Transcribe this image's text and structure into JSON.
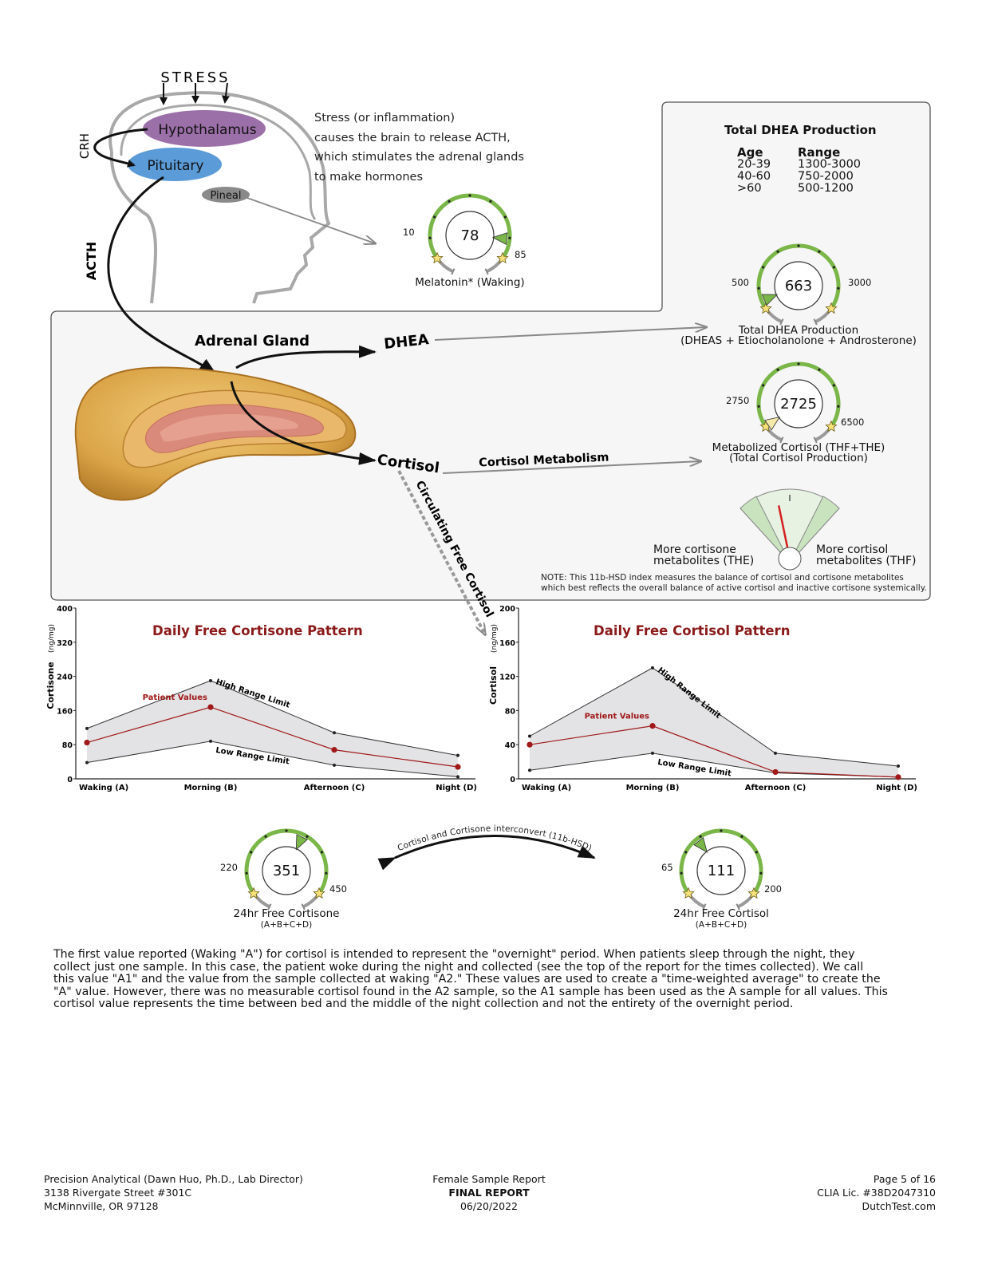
{
  "diagram": {
    "stress_label": "STRESS",
    "hypothalamus_label": "Hypothalamus",
    "pituitary_label": "Pituitary",
    "pineal_label": "Pineal",
    "crh_label": "CRH",
    "acth_label": "ACTH",
    "adrenal_label": "Adrenal Gland",
    "dhea_label": "DHEA",
    "cortisol_label": "Cortisol",
    "cortisol_metabolism_label": "Cortisol Metabolism",
    "circulating_label": "Circulating Free Cortisol",
    "interconvert_label": "Cortisol and Cortisone interconvert (11b-HSD)",
    "stress_description": [
      "Stress (or inflammation)",
      "causes the brain to release ACTH,",
      "which stimulates the adrenal glands",
      "to make hormones"
    ]
  },
  "dhea_table": {
    "title": "Total DHEA Production",
    "age_header": "Age",
    "range_header": "Range",
    "ages": [
      "20-39",
      "40-60",
      ">60"
    ],
    "ranges": [
      "1300-3000",
      "750-2000",
      "500-1200"
    ]
  },
  "gauges": {
    "melatonin": {
      "value": "78",
      "low": "10",
      "high": "85",
      "label": "Melatonin* (Waking)",
      "fraction": 0.88
    },
    "dhea": {
      "value": "663",
      "low": "500",
      "high": "3000",
      "label": "Total DHEA Production",
      "sublabel": "(DHEAS + Etiocholanolone + Androsterone)",
      "fraction": 0.05
    },
    "metab_cortisol": {
      "value": "2725",
      "low": "2750",
      "high": "6500",
      "label": "Metabolized Cortisol (THF+THE)",
      "sublabel": "(Total Cortisol Production)",
      "fraction": 0.0
    },
    "cortisone24": {
      "value": "351",
      "low": "220",
      "high": "450",
      "label": "24hr Free Cortisone",
      "sublabel": "(A+B+C+D)",
      "fraction": 0.6
    },
    "cortisol24": {
      "value": "111",
      "low": "65",
      "high": "200",
      "label": "24hr Free Cortisol",
      "sublabel": "(A+B+C+D)",
      "fraction": 0.35
    }
  },
  "hsd_index": {
    "left_label_1": "More cortisone",
    "left_label_2": "metabolites (THE)",
    "right_label_1": "More cortisol",
    "right_label_2": "metabolites (THF)",
    "needle_fraction": 0.36,
    "note_1": "NOTE: This 11b-HSD index measures the balance of cortisol and cortisone metabolites",
    "note_2": "which best reflects the overall balance of active cortisol and inactive cortisone systemically."
  },
  "chart_data": [
    {
      "type": "line",
      "title": "Daily Free Cortisone Pattern",
      "ylabel": "Cortisone",
      "yunit": "(ng/mg)",
      "categories": [
        "Waking (A)",
        "Morning (B)",
        "Afternoon (C)",
        "Night (D)"
      ],
      "ylim": [
        0,
        400
      ],
      "yticks": [
        "0",
        "80",
        "160",
        "240",
        "320",
        "400"
      ],
      "series": [
        {
          "name": "High Range Limit",
          "values": [
            118,
            230,
            108,
            55
          ]
        },
        {
          "name": "Patient Values",
          "values": [
            85,
            168,
            68,
            28
          ]
        },
        {
          "name": "Low Range Limit",
          "values": [
            38,
            88,
            32,
            5
          ]
        }
      ]
    },
    {
      "type": "line",
      "title": "Daily Free Cortisol Pattern",
      "ylabel": "Cortisol",
      "yunit": "(ng/mg)",
      "categories": [
        "Waking (A)",
        "Morning (B)",
        "Afternoon (C)",
        "Night (D)"
      ],
      "ylim": [
        0,
        200
      ],
      "yticks": [
        "0",
        "40",
        "80",
        "120",
        "160",
        "200"
      ],
      "series": [
        {
          "name": "High Range Limit",
          "values": [
            50,
            130,
            30,
            15
          ]
        },
        {
          "name": "Patient Values",
          "values": [
            40,
            62,
            8,
            2
          ]
        },
        {
          "name": "Low Range Limit",
          "values": [
            10,
            30,
            7,
            2
          ]
        }
      ]
    }
  ],
  "paragraph": [
    "The first value reported (Waking \"A\") for cortisol is intended to represent the \"overnight\" period. When patients sleep through the night, they",
    "collect just one sample. In this case, the patient woke during the night and collected (see the top of the report for the times collected). We call",
    "this value \"A1\" and the value from the sample collected at waking \"A2.\" These values are used to create a \"time-weighted average\" to create the",
    "\"A\" value. However, there was no measurable cortisol found in the A2 sample, so the A1 sample has been used as the A sample for all values. This",
    "cortisol value represents the time between bed and the middle of the night collection and not the entirety of the overnight period."
  ],
  "footer": {
    "left": [
      "Precision Analytical (Dawn Huo, Ph.D., Lab Director)",
      "3138 Rivergate Street #301C",
      "McMinnville, OR 97128"
    ],
    "center": [
      "Female Sample Report",
      "FINAL REPORT",
      "06/20/2022"
    ],
    "right": [
      "Page 5 of 16",
      "CLIA Lic. #38D2047310",
      "DutchTest.com"
    ]
  },
  "colors": {
    "hypothalamus": "#9b6fa8",
    "pituitary": "#5b9bd8",
    "pineal": "#8a8a8a",
    "gauge_green": "#7ab648",
    "patient_red": "#a01818",
    "title_red": "#8b1a1a",
    "panel_bg": "#f7f6f7"
  }
}
